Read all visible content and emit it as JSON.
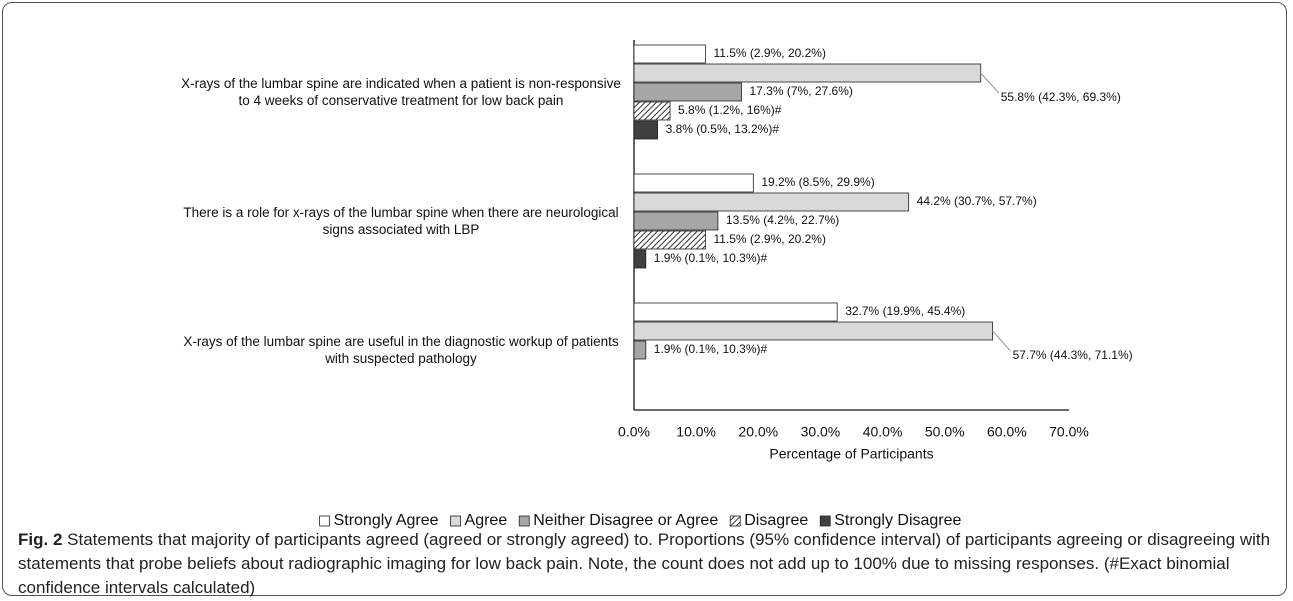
{
  "chart_data": {
    "type": "hbar",
    "categories": [
      "X-rays of the lumbar spine are indicated when a patient is non-responsive to 4 weeks of conservative treatment for low back pain",
      "There is a role for x-rays of the lumbar spine when there are neurological signs associated with LBP",
      "X-rays of the lumbar spine are useful in the diagnostic workup of patients with suspected pathology"
    ],
    "series": [
      {
        "name": "Strongly Agree",
        "color": "#ffffff",
        "values": [
          11.5,
          19.2,
          32.7
        ],
        "value_labels": [
          "11.5% (2.9%, 20.2%)",
          "19.2% (8.5%, 29.9%)",
          "32.7% (19.9%, 45.4%)"
        ]
      },
      {
        "name": "Agree",
        "color": "#d9d9d9",
        "values": [
          55.8,
          44.2,
          57.7
        ],
        "value_labels": [
          "55.8% (42.3%, 69.3%)",
          "44.2% (30.7%, 57.7%)",
          "57.7% (44.3%, 71.1%)"
        ]
      },
      {
        "name": "Neither Disagree or Agree",
        "color": "#a6a6a6",
        "values": [
          17.3,
          13.5,
          1.9
        ],
        "value_labels": [
          "17.3% (7%, 27.6%)",
          "13.5% (4.2%, 22.7%)",
          "1.9% (0.1%, 10.3%)#"
        ]
      },
      {
        "name": "Disagree",
        "color": "hatch",
        "values": [
          5.8,
          11.5,
          null
        ],
        "value_labels": [
          "5.8% (1.2%, 16%)#",
          "11.5% (2.9%, 20.2%)",
          null
        ]
      },
      {
        "name": "Strongly Disagree",
        "color": "#404040",
        "values": [
          3.8,
          1.9,
          null
        ],
        "value_labels": [
          "3.8% (0.5%, 13.2%)#",
          "1.9% (0.1%, 10.3%)#",
          null
        ]
      }
    ],
    "xlabel": "Percentage of Participants",
    "xlim": [
      0,
      70
    ],
    "xticks": [
      {
        "value": 0,
        "label": "0.0%"
      },
      {
        "value": 10,
        "label": "10.0%"
      },
      {
        "value": 20,
        "label": "20.0%"
      },
      {
        "value": 30,
        "label": "30.0%"
      },
      {
        "value": 40,
        "label": "40.0%"
      },
      {
        "value": 50,
        "label": "50.0%"
      },
      {
        "value": 60,
        "label": "60.0%"
      },
      {
        "value": 70,
        "label": "70.0%"
      }
    ],
    "legend": "bottom"
  },
  "caption": {
    "label": "Fig. 2",
    "text": "Statements that majority of participants agreed (agreed or strongly agreed) to. Proportions (95% confidence interval) of participants agreeing or disagreeing with statements that probe beliefs about radiographic imaging for low back pain. Note, the count does not add up to 100% due to missing responses. (#Exact binomial confidence intervals calculated)"
  }
}
